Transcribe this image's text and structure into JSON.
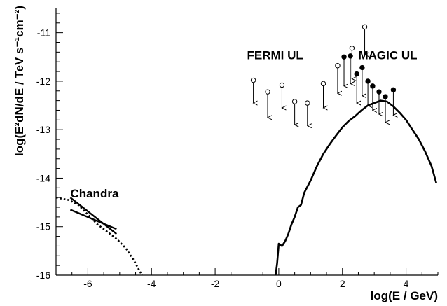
{
  "chart_data": {
    "type": "scatter",
    "title": "",
    "xlabel": "log(E / GeV)",
    "ylabel": "log(E²dN/dE / TeV s⁻¹cm⁻²)",
    "xlim": [
      -7,
      5
    ],
    "ylim": [
      -16,
      -10.5
    ],
    "x_ticks": [
      -6,
      -4,
      -2,
      0,
      2,
      4
    ],
    "y_ticks": [
      -16,
      -15,
      -14,
      -13,
      -12,
      -11
    ],
    "grid": false,
    "legend": "none",
    "annotations": [
      {
        "text": "Chandra",
        "x": -6.55,
        "y": -14.4
      },
      {
        "text": "FERMI UL",
        "x": -1.0,
        "y": -11.55
      },
      {
        "text": "MAGIC UL",
        "x": 2.5,
        "y": -11.55
      }
    ],
    "series": [
      {
        "style": "solid-line",
        "points": [
          [
            -0.1,
            -16.0
          ],
          [
            -0.05,
            -15.75
          ],
          [
            0.0,
            -15.35
          ],
          [
            0.1,
            -15.4
          ],
          [
            0.2,
            -15.3
          ],
          [
            0.3,
            -15.15
          ],
          [
            0.4,
            -14.95
          ],
          [
            0.5,
            -14.8
          ],
          [
            0.6,
            -14.6
          ],
          [
            0.7,
            -14.55
          ],
          [
            0.8,
            -14.3
          ],
          [
            1.0,
            -14.05
          ],
          [
            1.2,
            -13.75
          ],
          [
            1.4,
            -13.5
          ],
          [
            1.6,
            -13.3
          ],
          [
            1.8,
            -13.12
          ],
          [
            2.0,
            -12.95
          ],
          [
            2.2,
            -12.82
          ],
          [
            2.4,
            -12.72
          ],
          [
            2.6,
            -12.6
          ],
          [
            2.8,
            -12.5
          ],
          [
            3.0,
            -12.45
          ],
          [
            3.2,
            -12.4
          ],
          [
            3.4,
            -12.42
          ],
          [
            3.6,
            -12.52
          ],
          [
            3.8,
            -12.65
          ],
          [
            4.0,
            -12.8
          ],
          [
            4.2,
            -13.0
          ],
          [
            4.4,
            -13.2
          ],
          [
            4.6,
            -13.45
          ],
          [
            4.8,
            -13.75
          ],
          [
            4.95,
            -14.1
          ]
        ]
      },
      {
        "style": "dotted-line",
        "points": [
          [
            -7.0,
            -14.4
          ],
          [
            -6.6,
            -14.45
          ],
          [
            -6.3,
            -14.55
          ],
          [
            -6.0,
            -14.75
          ],
          [
            -5.7,
            -14.95
          ],
          [
            -5.4,
            -15.1
          ],
          [
            -5.1,
            -15.25
          ],
          [
            -4.8,
            -15.45
          ],
          [
            -4.55,
            -15.7
          ],
          [
            -4.3,
            -16.0
          ]
        ]
      },
      {
        "style": "chandra-butterfly",
        "segments": [
          [
            [
              -6.55,
              -14.4
            ],
            [
              -5.1,
              -15.15
            ]
          ],
          [
            [
              -6.55,
              -14.65
            ],
            [
              -5.1,
              -15.05
            ]
          ]
        ]
      },
      {
        "name": "FERMI UL",
        "style": "open-circle-upper-limit",
        "points": [
          [
            -0.8,
            -11.98
          ],
          [
            -0.35,
            -12.22
          ],
          [
            0.1,
            -12.08
          ],
          [
            0.5,
            -12.42
          ],
          [
            0.9,
            -12.45
          ],
          [
            1.4,
            -12.05
          ],
          [
            1.85,
            -11.68
          ],
          [
            2.3,
            -11.32
          ],
          [
            2.7,
            -10.88
          ]
        ],
        "arrow_to": [
          -12.45,
          -12.75,
          -12.55,
          -12.9,
          -12.92,
          -12.55,
          -12.25,
          -11.95,
          -11.45
        ]
      },
      {
        "name": "MAGIC UL",
        "style": "filled-circle-upper-limit",
        "points": [
          [
            2.05,
            -11.5
          ],
          [
            2.25,
            -11.48
          ],
          [
            2.45,
            -11.85
          ],
          [
            2.62,
            -11.72
          ],
          [
            2.8,
            -12.0
          ],
          [
            2.95,
            -12.1
          ],
          [
            3.15,
            -12.22
          ],
          [
            3.35,
            -12.32
          ],
          [
            3.6,
            -12.18
          ]
        ],
        "arrow_to": [
          -12.1,
          -12.05,
          -12.45,
          -12.3,
          -12.5,
          -12.6,
          -12.68,
          -12.85,
          -12.7
        ]
      }
    ]
  }
}
